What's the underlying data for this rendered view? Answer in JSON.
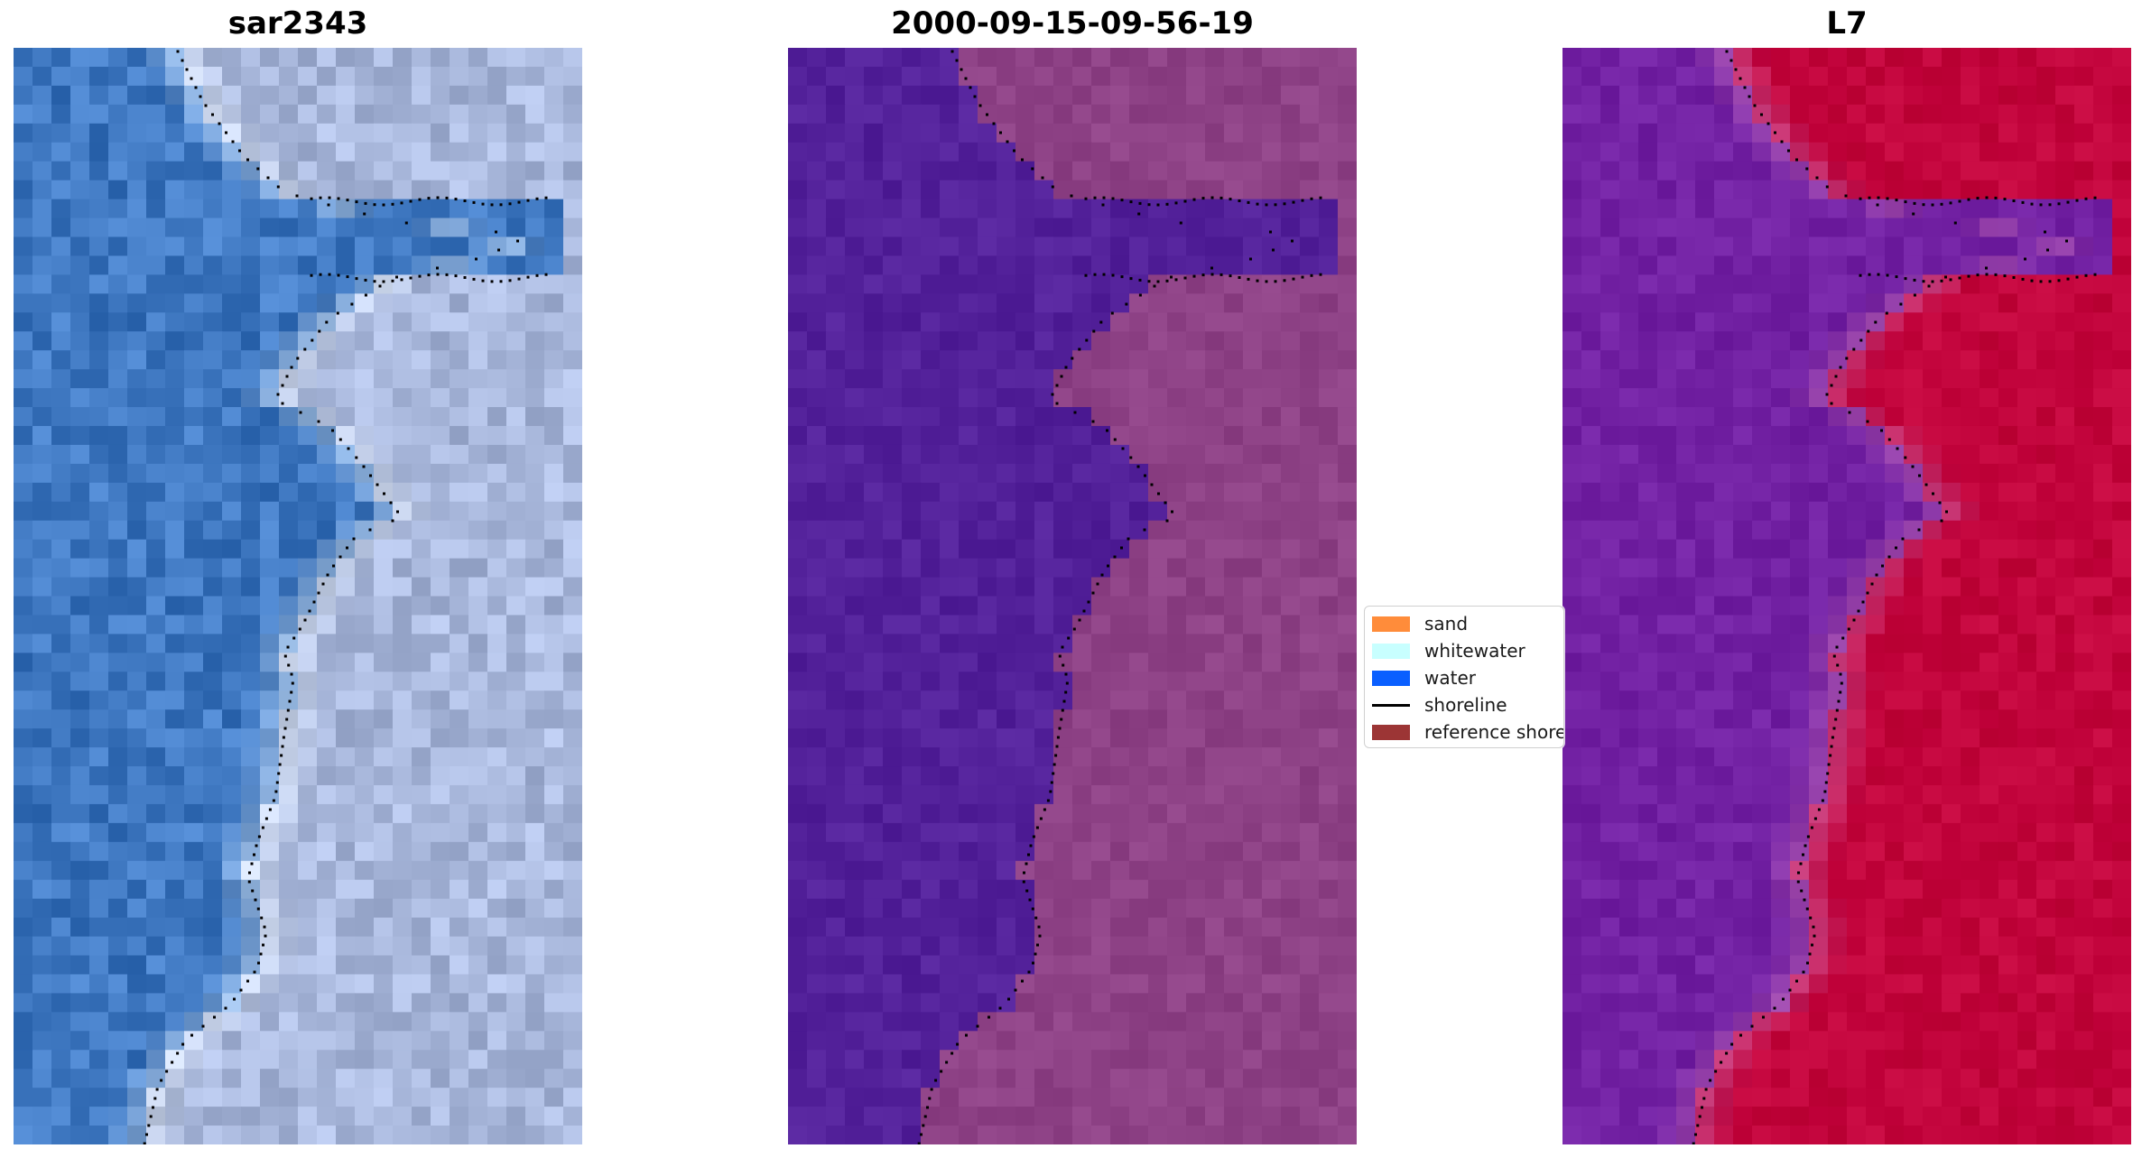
{
  "panels": [
    {
      "title": "sar2343",
      "kind": "rgb-image"
    },
    {
      "title": "2000-09-15-09-56-19",
      "kind": "classified-image"
    },
    {
      "title": "L7",
      "kind": "index-image"
    }
  ],
  "legend": {
    "items": [
      {
        "label": "sand",
        "color": "#FF8C3A",
        "type": "patch"
      },
      {
        "label": "whitewater",
        "color": "#C8FFFF",
        "type": "patch"
      },
      {
        "label": "water",
        "color": "#0A5FFF",
        "type": "patch"
      },
      {
        "label": "shoreline",
        "color": "#000000",
        "type": "line"
      },
      {
        "label": "reference shoreline",
        "color": "#9C3535",
        "type": "patch"
      }
    ]
  },
  "colors": {
    "rgb_water": "#3F78C1",
    "rgb_land": "#A9B8DC",
    "class_water": "#53219A",
    "class_land": "#8E4286",
    "index_water": "#7221A3",
    "index_land": "#C2043C",
    "shoreline_dots": "#000000"
  }
}
